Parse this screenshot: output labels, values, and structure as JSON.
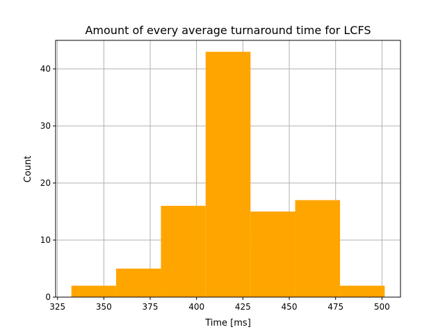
{
  "chart_data": {
    "type": "bar",
    "subtype": "histogram",
    "title": "Amount of every average turnaround time for LCFS",
    "xlabel": "Time [ms]",
    "ylabel": "Count",
    "bins": [
      {
        "start": 332.5,
        "end": 356.6,
        "count": 2
      },
      {
        "start": 356.6,
        "end": 380.8,
        "count": 5
      },
      {
        "start": 380.8,
        "end": 404.9,
        "count": 16
      },
      {
        "start": 404.9,
        "end": 429.1,
        "count": 43
      },
      {
        "start": 429.1,
        "end": 453.2,
        "count": 15
      },
      {
        "start": 453.2,
        "end": 477.4,
        "count": 17
      },
      {
        "start": 477.4,
        "end": 501.5,
        "count": 2
      }
    ],
    "xlim": [
      324,
      510
    ],
    "ylim": [
      0,
      45
    ],
    "xticks": [
      325,
      350,
      375,
      400,
      425,
      450,
      475,
      500
    ],
    "yticks": [
      0,
      10,
      20,
      30,
      40
    ],
    "grid": true,
    "bar_color": "#ffa500",
    "grid_color": "#b0b0b0"
  }
}
